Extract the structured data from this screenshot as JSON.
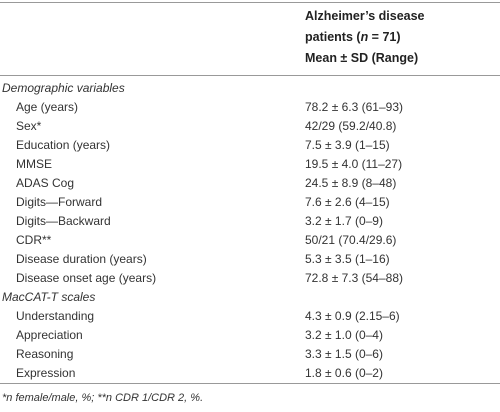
{
  "header": {
    "line1": "Alzheimer’s disease",
    "line2a": "patients (",
    "line2n": "n",
    "line2b": " = 71)",
    "line3": "Mean ± SD (Range)"
  },
  "table": {
    "rows": [
      [
        "Demographic variables",
        ""
      ],
      [
        "Age (years)",
        "78.2 ± 6.3 (61–93)"
      ],
      [
        "Sex*",
        "42/29 (59.2/40.8)"
      ],
      [
        "Education (years)",
        "7.5 ± 3.9 (1–15)"
      ],
      [
        "MMSE",
        "19.5 ± 4.0 (11–27)"
      ],
      [
        "ADAS Cog",
        "24.5 ± 8.9 (8–48)"
      ],
      [
        "Digits—Forward",
        "7.6 ± 2.6 (4–15)"
      ],
      [
        "Digits—Backward",
        "3.2 ± 1.7 (0–9)"
      ],
      [
        "CDR**",
        "50/21 (70.4/29.6)"
      ],
      [
        "Disease duration (years)",
        "5.3 ± 3.5 (1–16)"
      ],
      [
        "Disease onset age (years)",
        "72.8 ± 7.3 (54–88)"
      ],
      [
        "MacCAT-T scales",
        ""
      ],
      [
        "Understanding",
        "4.3 ± 0.9 (2.15–6)"
      ],
      [
        "Appreciation",
        "3.2 ± 1.0 (0–4)"
      ],
      [
        "Reasoning",
        "3.3 ± 1.5 (0–6)"
      ],
      [
        "Expression",
        "1.8 ± 0.6 (0–2)"
      ]
    ]
  },
  "footnote": "*n female/male, %; **n CDR 1/CDR 2, %."
}
